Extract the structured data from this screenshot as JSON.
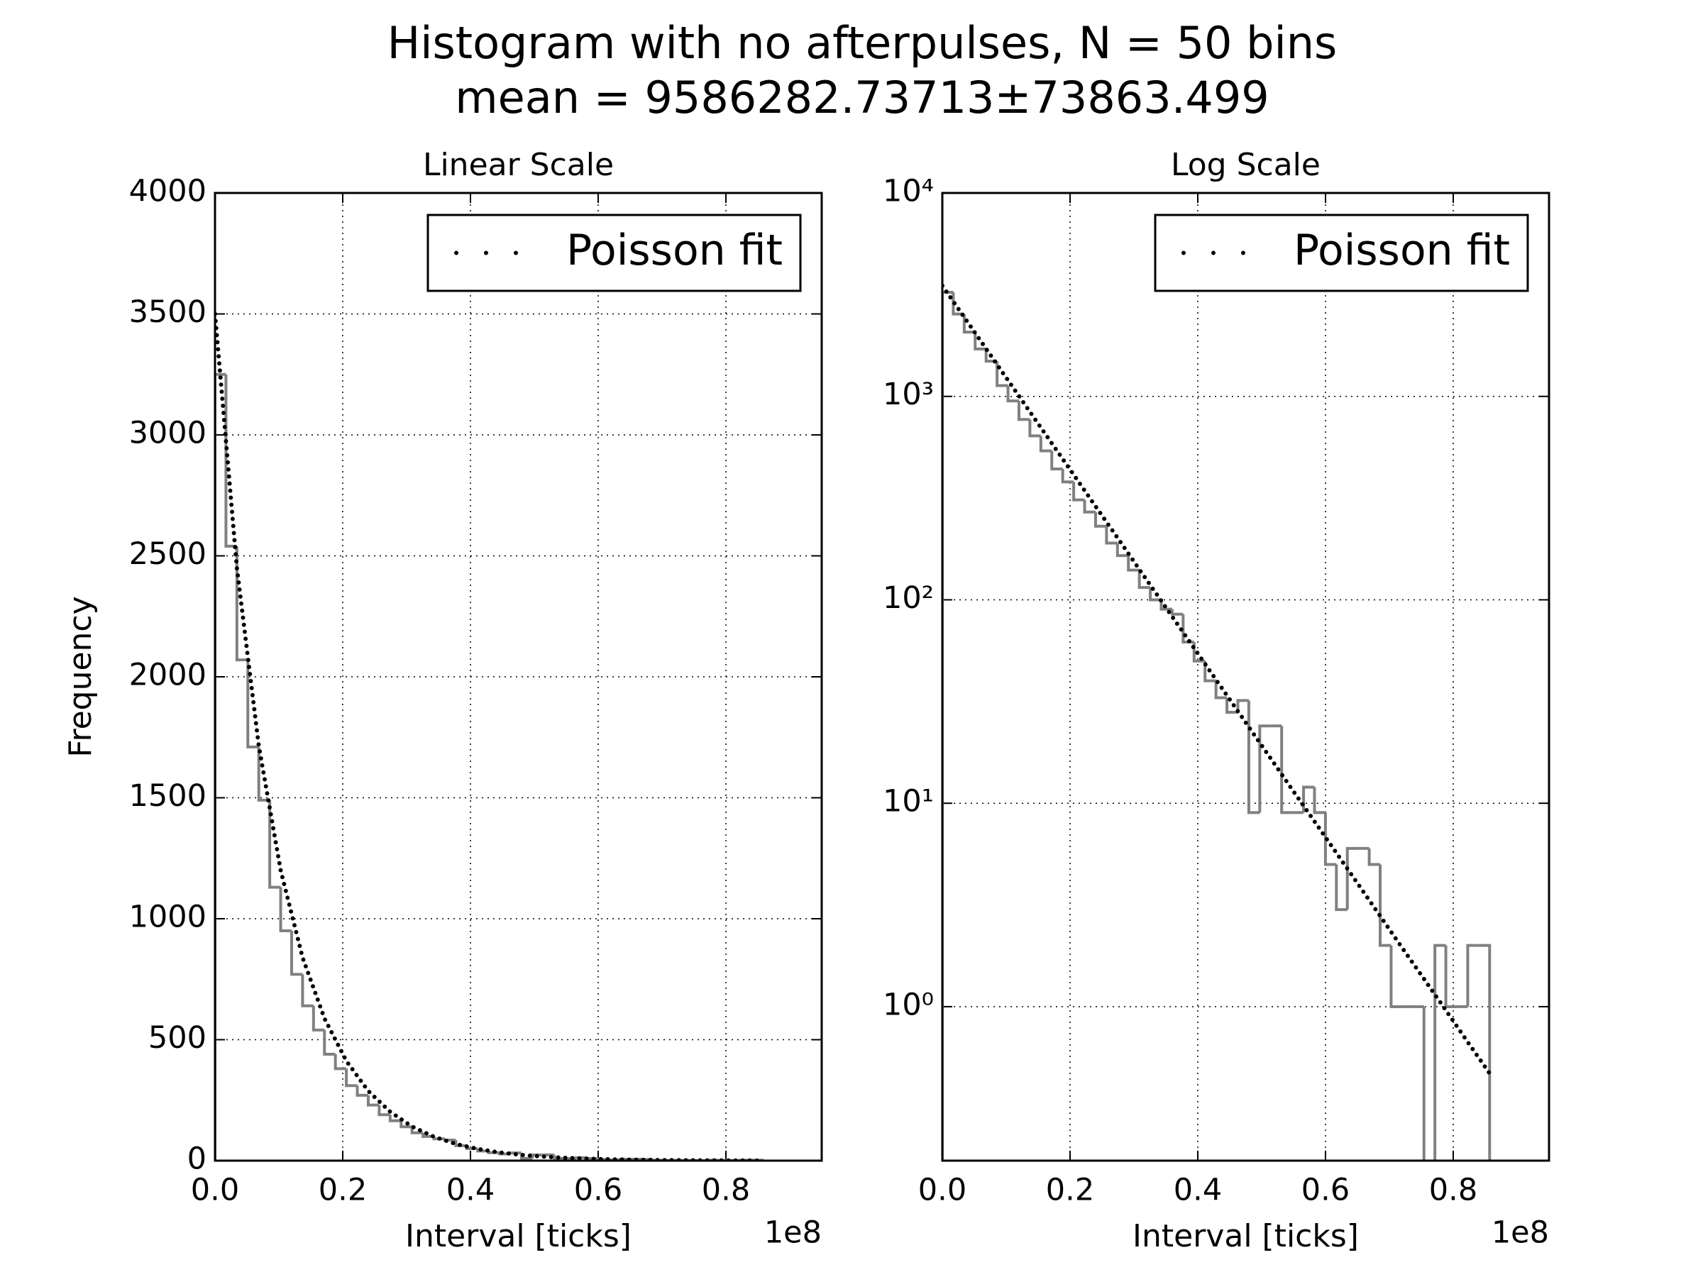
{
  "title": [
    "Histogram with no afterpulses, N = 50 bins",
    "mean = 9586282.73713±73863.499"
  ],
  "chart_data": [
    {
      "type": "histogram",
      "title": "Linear Scale",
      "xlabel": "Interval [ticks]",
      "ylabel": "Frequency",
      "x_offset_label": "1e8",
      "bins": [
        0,
        1714000,
        3428000,
        5142000,
        6856000,
        8570000,
        10284000,
        11998000,
        13712000,
        15426000,
        17140000,
        18854000,
        20568000,
        22282000,
        23996000,
        25710000,
        27424000,
        29138000,
        30852000,
        32566000,
        34280000,
        35994000,
        37708000,
        39422000,
        41136000,
        42850000,
        44564000,
        46278000,
        47992000,
        49706000,
        51420000,
        53134000,
        54848000,
        56562000,
        58276000,
        59990000,
        61704000,
        63418000,
        65132000,
        66846000,
        68560000,
        70274000,
        71988000,
        73702000,
        75416000,
        77130000,
        78844000,
        80558000,
        82272000,
        83986000,
        85700000
      ],
      "values": [
        3250,
        2540,
        2070,
        1710,
        1490,
        1130,
        950,
        770,
        640,
        540,
        440,
        380,
        310,
        270,
        230,
        190,
        165,
        140,
        115,
        100,
        90,
        85,
        62,
        50,
        40,
        33,
        28,
        32,
        9,
        24,
        24,
        9,
        9,
        12,
        9,
        5,
        3,
        6,
        6,
        5,
        2,
        1,
        1,
        1,
        0,
        2,
        1,
        1,
        2,
        2
      ],
      "color": "#808080",
      "series": [
        {
          "name": "Poisson fit",
          "color": "#000000",
          "x": [
            0,
            3428000,
            6856000,
            10284000,
            13712000,
            17140000,
            20568000,
            23996000,
            27424000,
            30852000,
            34280000,
            37708000,
            41136000,
            44564000,
            47992000,
            51420000,
            54848000,
            58276000,
            61704000,
            65132000,
            68560000,
            71988000,
            75416000,
            78844000,
            82272000,
            85700000
          ],
          "values": [
            3500,
            2450,
            1715,
            1200,
            840,
            588,
            412,
            288,
            202,
            141,
            98.9,
            69.2,
            48.4,
            33.9,
            23.7,
            16.6,
            11.6,
            8.14,
            5.7,
            3.99,
            2.79,
            1.95,
            1.37,
            0.96,
            0.67,
            0.47
          ]
        }
      ],
      "xlim": [
        0,
        95000000
      ],
      "xticks": [
        {
          "value": 0,
          "label": "0.0"
        },
        {
          "value": 20000000,
          "label": "0.2"
        },
        {
          "value": 40000000,
          "label": "0.4"
        },
        {
          "value": 60000000,
          "label": "0.6"
        },
        {
          "value": 80000000,
          "label": "0.8"
        }
      ],
      "ylim": [
        0,
        4000
      ],
      "yticks": [
        0,
        500,
        1000,
        1500,
        2000,
        2500,
        3000,
        3500,
        4000
      ],
      "log_y": false,
      "grid": true,
      "legend": "upper right"
    },
    {
      "type": "histogram",
      "title": "Log Scale",
      "xlabel": "Interval [ticks]",
      "x_offset_label": "1e8",
      "bins": [
        0,
        1714000,
        3428000,
        5142000,
        6856000,
        8570000,
        10284000,
        11998000,
        13712000,
        15426000,
        17140000,
        18854000,
        20568000,
        22282000,
        23996000,
        25710000,
        27424000,
        29138000,
        30852000,
        32566000,
        34280000,
        35994000,
        37708000,
        39422000,
        41136000,
        42850000,
        44564000,
        46278000,
        47992000,
        49706000,
        51420000,
        53134000,
        54848000,
        56562000,
        58276000,
        59990000,
        61704000,
        63418000,
        65132000,
        66846000,
        68560000,
        70274000,
        71988000,
        73702000,
        75416000,
        77130000,
        78844000,
        80558000,
        82272000,
        83986000,
        85700000
      ],
      "values": [
        3250,
        2540,
        2070,
        1710,
        1490,
        1130,
        950,
        770,
        640,
        540,
        440,
        380,
        310,
        270,
        230,
        190,
        165,
        140,
        115,
        100,
        90,
        85,
        62,
        50,
        40,
        33,
        28,
        32,
        9,
        24,
        24,
        9,
        9,
        12,
        9,
        5,
        3,
        6,
        6,
        5,
        2,
        1,
        1,
        1,
        0,
        2,
        1,
        1,
        2,
        2
      ],
      "color": "#808080",
      "series": [
        {
          "name": "Poisson fit",
          "color": "#000000",
          "x": [
            0,
            3428000,
            6856000,
            10284000,
            13712000,
            17140000,
            20568000,
            23996000,
            27424000,
            30852000,
            34280000,
            37708000,
            41136000,
            44564000,
            47992000,
            51420000,
            54848000,
            58276000,
            61704000,
            65132000,
            68560000,
            71988000,
            75416000,
            78844000,
            82272000,
            85700000
          ],
          "values": [
            3500,
            2450,
            1715,
            1200,
            840,
            588,
            412,
            288,
            202,
            141,
            98.9,
            69.2,
            48.4,
            33.9,
            23.7,
            16.6,
            11.6,
            8.14,
            5.7,
            3.99,
            2.79,
            1.95,
            1.37,
            0.96,
            0.67,
            0.47
          ]
        }
      ],
      "xlim": [
        0,
        95000000
      ],
      "xticks": [
        {
          "value": 0,
          "label": "0.0"
        },
        {
          "value": 20000000,
          "label": "0.2"
        },
        {
          "value": 40000000,
          "label": "0.4"
        },
        {
          "value": 60000000,
          "label": "0.6"
        },
        {
          "value": 80000000,
          "label": "0.8"
        }
      ],
      "ylim": [
        0.175,
        10000
      ],
      "yticks": [
        {
          "value": 1,
          "label": "10⁰"
        },
        {
          "value": 10,
          "label": "10¹"
        },
        {
          "value": 100,
          "label": "10²"
        },
        {
          "value": 1000,
          "label": "10³"
        },
        {
          "value": 10000,
          "label": "10⁴"
        }
      ],
      "log_y": true,
      "grid": true,
      "legend": "upper right"
    }
  ]
}
